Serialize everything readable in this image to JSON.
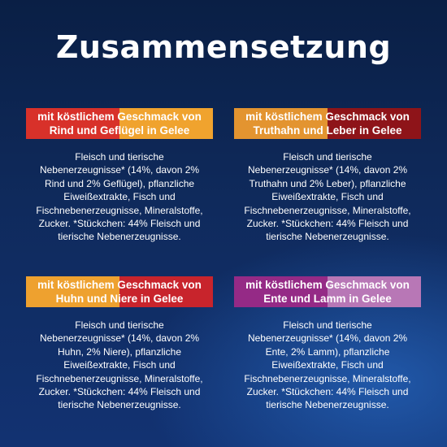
{
  "title": "Zusammensetzung",
  "cards": [
    {
      "banner": [
        "mit köstlichem Geschmack von",
        "Rind und Geflügel in Gelee"
      ],
      "colors": {
        "left": "#d8312a",
        "right": "#f0a32e"
      },
      "desc": [
        "Fleisch und tierische",
        "Nebenerzeugnisse* (14%, davon 2%",
        "Rind und 2% Geflügel), pflanzliche",
        "Eiweißextrakte, Fisch und",
        "Fischnebenerzeugnisse, Mineralstoffe,",
        "Zucker. *Stückchen: 44% Fleisch und",
        "tierische Nebenerzeugnisse."
      ]
    },
    {
      "banner": [
        "mit köstlichem Geschmack von",
        "Truthahn und Leber in Gelee"
      ],
      "colors": {
        "left": "#e39430",
        "right": "#8e1419"
      },
      "desc": [
        "Fleisch und tierische",
        "Nebenerzeugnisse* (14%, davon 2%",
        "Truthahn und 2% Leber), pflanzliche",
        "Eiweißextrakte, Fisch und",
        "Fischnebenerzeugnisse, Mineralstoffe,",
        "Zucker. *Stückchen: 44% Fleisch und",
        "tierische Nebenerzeugnisse."
      ]
    },
    {
      "banner": [
        "mit köstlichem Geschmack von",
        "Huhn und Niere in Gelee"
      ],
      "colors": {
        "left": "#eea12f",
        "right": "#c8242c"
      },
      "desc": [
        "Fleisch und tierische",
        "Nebenerzeugnisse* (14%, davon 2%",
        "Huhn, 2% Niere), pflanzliche",
        "Eiweißextrakte, Fisch und",
        "Fischnebenerzeugnisse, Mineralstoffe,",
        "Zucker. *Stückchen: 44% Fleisch und",
        "tierische Nebenerzeugnisse."
      ]
    },
    {
      "banner": [
        "mit köstlichem Geschmack von",
        "Ente und Lamm in Gelee"
      ],
      "colors": {
        "left": "#952a86",
        "right": "#b877b6"
      },
      "desc": [
        "Fleisch und tierische",
        "Nebenerzeugnisse* (14%, davon 2%",
        "Ente, 2% Lamm), pflanzliche",
        "Eiweißextrakte, Fisch und",
        "Fischnebenerzeugnisse, Mineralstoffe,",
        "Zucker. *Stückchen: 44% Fleisch und",
        "tierische Nebenerzeugnisse."
      ]
    }
  ]
}
